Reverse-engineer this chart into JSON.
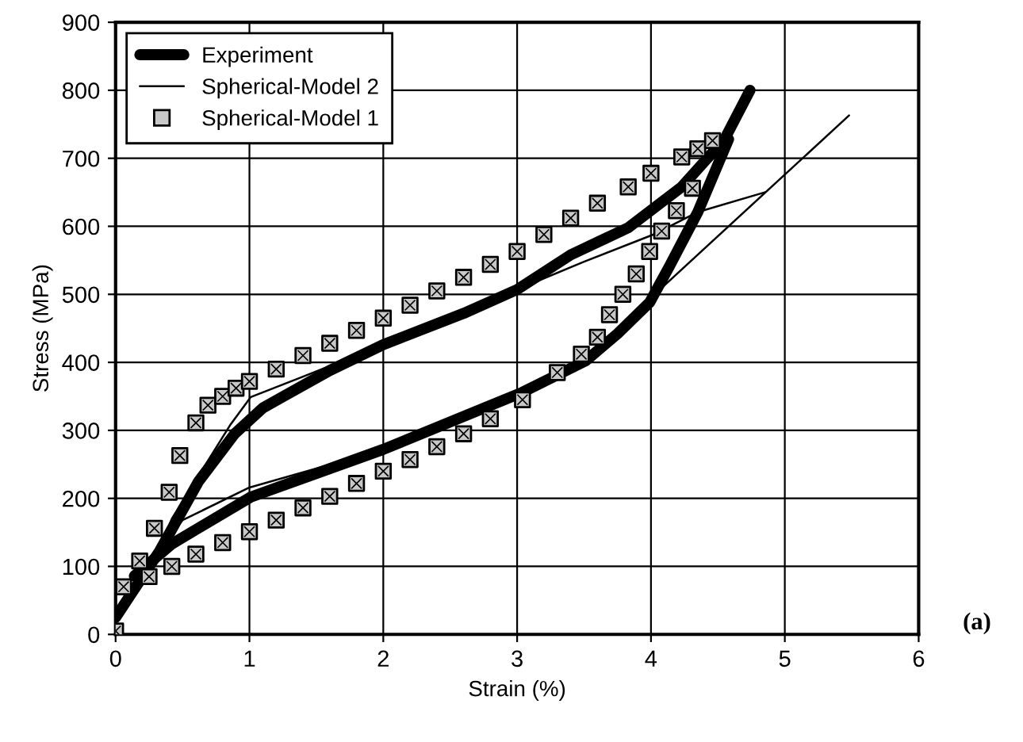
{
  "chart_data": {
    "type": "line",
    "xlabel": "Strain (%)",
    "ylabel": "Stress (MPa)",
    "xlim": [
      0,
      6
    ],
    "ylim": [
      0,
      900
    ],
    "xticks": [
      0,
      1,
      2,
      3,
      4,
      5,
      6
    ],
    "yticks": [
      0,
      100,
      200,
      300,
      400,
      500,
      600,
      700,
      800,
      900
    ],
    "grid": true,
    "legend": "top left",
    "annotations": [
      "(a)"
    ],
    "series": [
      {
        "name": "Experiment",
        "color": "#000000",
        "line_style": "solid",
        "marker": "none",
        "x": [
          0,
          0.33,
          0.62,
          0.89,
          1.1,
          1.6,
          2.0,
          2.6,
          3.0,
          3.4,
          3.83,
          4.23,
          4.55,
          4.74
        ],
        "values": [
          25,
          123,
          225,
          295,
          333,
          388,
          426,
          472,
          507,
          558,
          598,
          658,
          728,
          800
        ]
      },
      {
        "color": "#000000",
        "line_style": "solid",
        "marker": "none",
        "x": [
          0.14,
          0.42,
          1.01,
          2.0,
          3.04,
          3.51,
          3.75,
          3.99,
          4.14,
          4.35,
          4.58
        ],
        "values": [
          86,
          133,
          202,
          272,
          356,
          402,
          442,
          488,
          542,
          621,
          728
        ]
      },
      {
        "name": "Spherical-Model 2",
        "color": "#000000",
        "line_style": "solid",
        "marker": "none",
        "x": [
          0,
          0.3,
          0.42,
          0.86,
          1.01,
          1.4,
          2.0,
          3.0,
          3.5,
          4.02,
          4.35,
          4.85
        ],
        "values": [
          25,
          110,
          170,
          309,
          349,
          379,
          426,
          507,
          548,
          588,
          621,
          650
        ]
      },
      {
        "color": "#000000",
        "line_style": "solid",
        "marker": "none",
        "x": [
          0.2,
          0.5,
          1.0,
          2.0,
          3.0,
          3.5,
          3.95,
          4.0,
          5.48
        ],
        "values": [
          95,
          168,
          216,
          272,
          356,
          402,
          480,
          495,
          763
        ]
      },
      {
        "name": "Spherical-Model 1",
        "color": "#000000",
        "type": "scatter",
        "marker": "square",
        "x": [
          0,
          0.06,
          0.18,
          0.29,
          0.4,
          0.48,
          0.6,
          0.69,
          0.8,
          0.9,
          1.0,
          1.2,
          1.4,
          1.6,
          1.8,
          2.0,
          2.2,
          2.4,
          2.6,
          2.8,
          3.0,
          3.2,
          3.4,
          3.6,
          3.83,
          4.0,
          4.23,
          4.35,
          4.46,
          4.31,
          4.19,
          4.08,
          3.99,
          3.89,
          3.79,
          3.69,
          3.6,
          3.48,
          3.3,
          3.04,
          2.8,
          2.6,
          2.4,
          2.2,
          2.0,
          1.8,
          1.6,
          1.4,
          1.2,
          1.0,
          0.8,
          0.6,
          0.42,
          0.25
        ],
        "values": [
          5,
          70,
          108,
          156,
          209,
          263,
          311,
          337,
          350,
          362,
          372,
          390,
          410,
          428,
          447,
          465,
          484,
          505,
          525,
          544,
          563,
          588,
          612,
          634,
          658,
          678,
          702,
          714,
          726,
          656,
          623,
          593,
          563,
          530,
          500,
          470,
          437,
          412,
          385,
          345,
          317,
          295,
          276,
          257,
          240,
          222,
          203,
          186,
          168,
          151,
          135,
          118,
          100,
          85
        ]
      }
    ]
  }
}
